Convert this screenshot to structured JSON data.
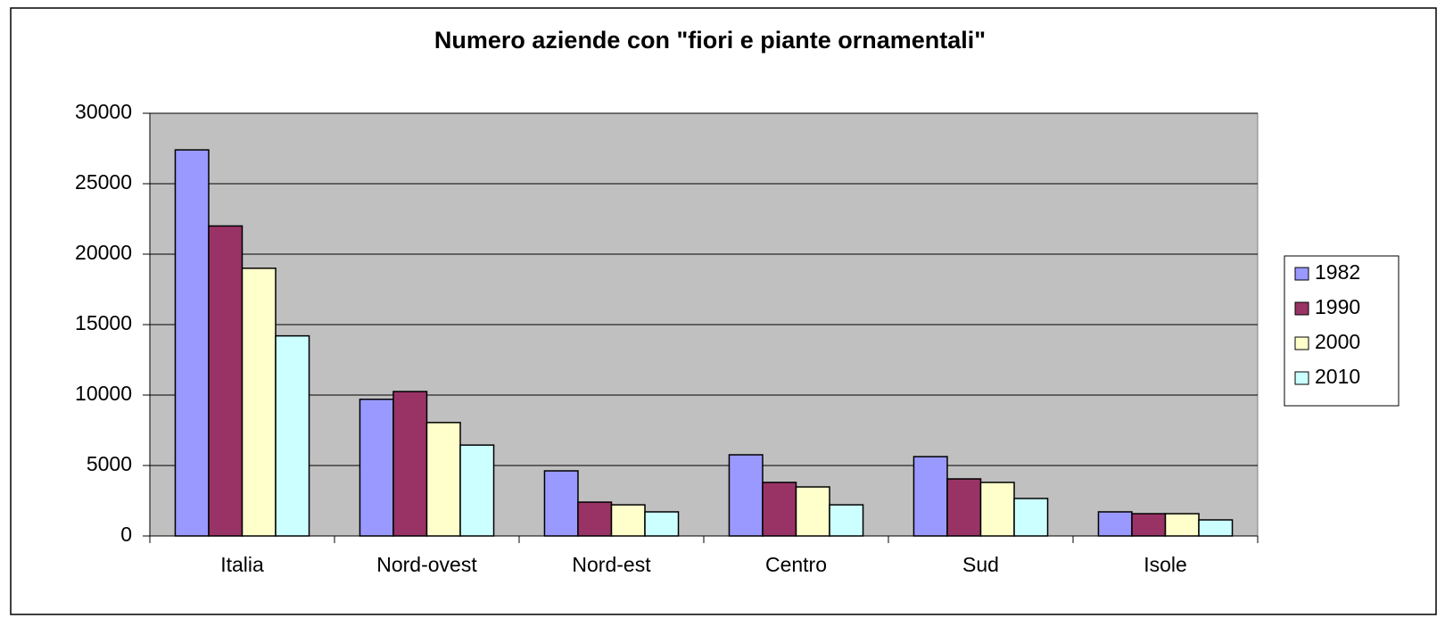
{
  "chart_data": {
    "type": "bar",
    "title": "Numero aziende con \"fiori e piante ornamentali\"",
    "categories": [
      "Italia",
      "Nord-ovest",
      "Nord-est",
      "Centro",
      "Sud",
      "Isole"
    ],
    "series": [
      {
        "name": "1982",
        "color": "#9999ff",
        "values": [
          27400,
          9700,
          4620,
          5760,
          5630,
          1710
        ]
      },
      {
        "name": "1990",
        "color": "#993366",
        "values": [
          22000,
          10250,
          2400,
          3800,
          4050,
          1580
        ]
      },
      {
        "name": "2000",
        "color": "#ffffcc",
        "values": [
          19000,
          8050,
          2210,
          3480,
          3800,
          1580
        ]
      },
      {
        "name": "2010",
        "color": "#ccffff",
        "values": [
          14200,
          6450,
          1710,
          2210,
          2660,
          1140
        ]
      }
    ],
    "ylim": [
      0,
      30000
    ],
    "yticks": [
      0,
      5000,
      10000,
      15000,
      20000,
      25000,
      30000
    ],
    "grid": true,
    "legend": "right"
  }
}
